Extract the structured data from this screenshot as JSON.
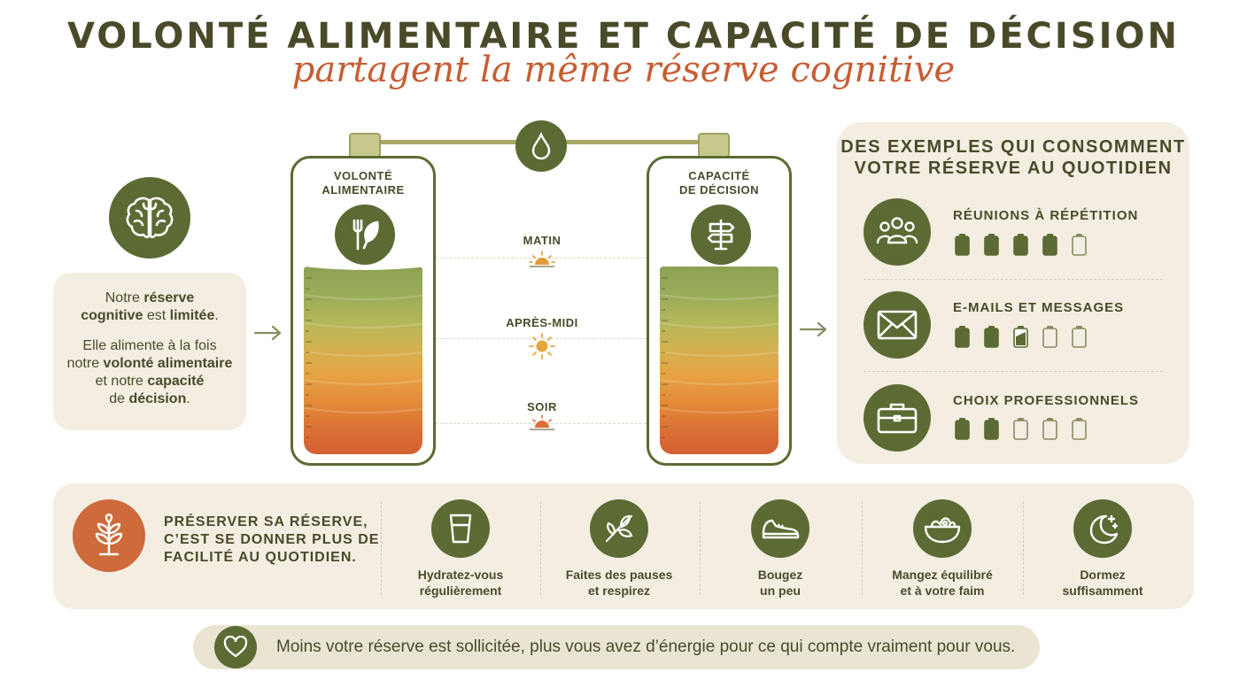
{
  "title": "VOLONTÉ ALIMENTAIRE ET CAPACITÉ DE DÉCISION",
  "subtitle": "partagent la même réserve cognitive",
  "intro": {
    "line1_a": "Notre ",
    "line1_b": "réserve",
    "line2_a": "cognitive",
    "line2_b": " est ",
    "line2_c": "limitée",
    "line2_d": ".",
    "p2_a": "Elle alimente à la fois",
    "p2_b": "notre ",
    "p2_c": "volonté alimentaire",
    "p2_d": "et notre ",
    "p2_e": "capacité",
    "p2_f": "de ",
    "p2_g": "décision",
    "p2_h": "."
  },
  "tanks": {
    "left": {
      "line1": "VOLONTÉ",
      "line2": "ALIMENTAIRE",
      "icon": "fork-leaf-icon"
    },
    "right": {
      "line1": "CAPACITÉ",
      "line2": "DE DÉCISION",
      "icon": "signpost-icon"
    }
  },
  "times": [
    {
      "label": "MATIN",
      "icon": "sunrise-icon"
    },
    {
      "label": "APRÈS-MIDI",
      "icon": "sun-icon"
    },
    {
      "label": "SOIR",
      "icon": "sunset-icon"
    }
  ],
  "examples": {
    "title_line1": "DES EXEMPLES QUI CONSOMMENT",
    "title_line2": "VOTRE RÉSERVE AU QUOTIDIEN",
    "items": [
      {
        "label": "RÉUNIONS À RÉPÉTITION",
        "icon": "group-icon",
        "batteries": [
          "full",
          "full",
          "full",
          "full",
          "empty"
        ]
      },
      {
        "label": "E-MAILS ET MESSAGES",
        "icon": "envelope-icon",
        "batteries": [
          "full",
          "full",
          "half",
          "empty",
          "empty"
        ]
      },
      {
        "label": "CHOIX PROFESSIONNELS",
        "icon": "briefcase-icon",
        "batteries": [
          "full",
          "full",
          "empty",
          "empty",
          "empty"
        ]
      }
    ]
  },
  "preserve": {
    "line1": "PRÉSERVER SA RÉSERVE,",
    "line2": "C’EST SE DONNER PLUS DE",
    "line3": "FACILITÉ AU QUOTIDIEN.",
    "icon": "plant-icon"
  },
  "tips": [
    {
      "line1": "Hydratez-vous",
      "line2": "régulièrement",
      "icon": "glass-icon"
    },
    {
      "line1": "Faites des pauses",
      "line2": "et respirez",
      "icon": "leaves-icon"
    },
    {
      "line1": "Bougez",
      "line2": "un peu",
      "icon": "shoe-icon"
    },
    {
      "line1": "Mangez équilibré",
      "line2": "et à votre faim",
      "icon": "salad-bowl-icon"
    },
    {
      "line1": "Dormez",
      "line2": "suffisamment",
      "icon": "moon-icon"
    }
  ],
  "footer": "Moins votre réserve est sollicitée, plus vous avez d’énergie pour ce qui compte vraiment pour vous.",
  "colors": {
    "olive": "#5b6b33",
    "orange": "#c65e33",
    "panel": "#f4ede2",
    "text": "#4a4a2a"
  }
}
